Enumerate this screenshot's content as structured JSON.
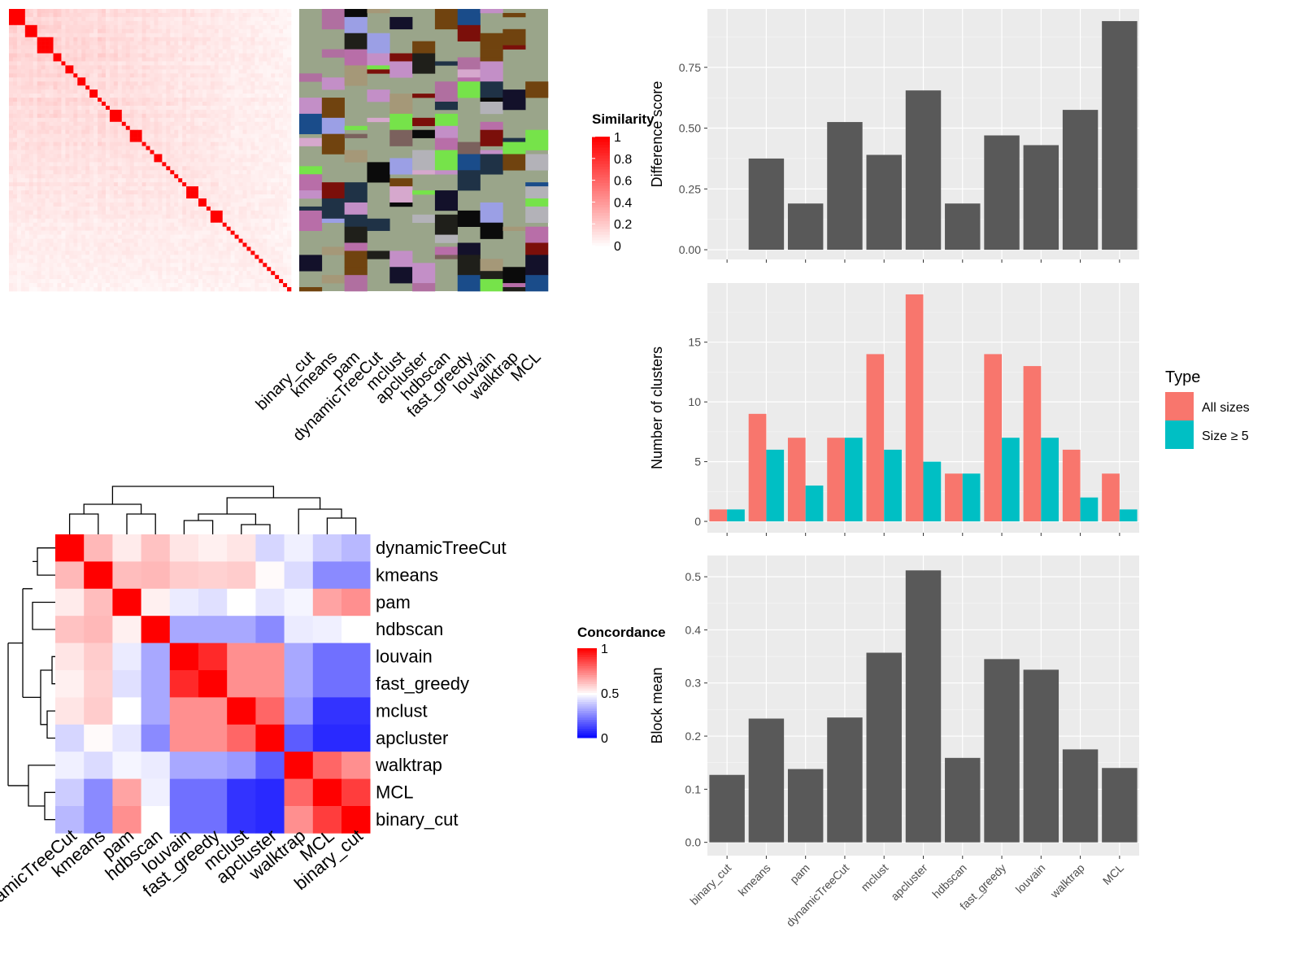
{
  "chart_data": [
    {
      "type": "heatmap",
      "panel": "similarity-matrix",
      "n_terms": 70,
      "block_sizes": [
        4,
        3,
        4,
        2,
        1,
        2,
        1,
        2,
        1,
        2,
        1,
        1,
        1,
        3,
        1,
        1,
        3,
        1,
        1,
        1,
        2,
        1,
        1,
        1,
        1,
        1,
        1,
        3,
        2,
        1,
        3,
        1,
        1,
        1,
        1,
        1,
        1,
        1,
        1,
        1,
        1,
        1,
        1
      ],
      "legend": {
        "title": "Similarity",
        "ticks": [
          "1",
          "0.8",
          "0.6",
          "0.4",
          "0.2",
          "0"
        ],
        "colors": [
          "#ffffff",
          "#ff0000"
        ]
      },
      "columns": [
        "binary_cut",
        "kmeans",
        "pam",
        "dynamicTreeCut",
        "mclust",
        "apcluster",
        "hdbscan",
        "fast_greedy",
        "louvain",
        "walktrap",
        "MCL"
      ],
      "cluster_colors": [
        "#9aa58a",
        "#c38fc7",
        "#76e34a",
        "#1f3246",
        "#9b9fe5",
        "#7b615d",
        "#13112a",
        "#b3b2b8",
        "#0b0b0b",
        "#b86ea8",
        "#d6a8cd",
        "#70430f",
        "#7b0f0a",
        "#1f1f1a",
        "#1a4c8a",
        "#a59878",
        "#b06fa0"
      ]
    },
    {
      "type": "heatmap",
      "panel": "concordance",
      "methods": [
        "dynamicTreeCut",
        "kmeans",
        "pam",
        "hdbscan",
        "louvain",
        "fast_greedy",
        "mclust",
        "apcluster",
        "walktrap",
        "MCL",
        "binary_cut"
      ],
      "values": [
        [
          1.0,
          0.64,
          0.54,
          0.62,
          0.55,
          0.53,
          0.55,
          0.42,
          0.47,
          0.4,
          0.36
        ],
        [
          0.64,
          1.0,
          0.63,
          0.64,
          0.6,
          0.59,
          0.6,
          0.51,
          0.43,
          0.27,
          0.27
        ],
        [
          0.54,
          0.63,
          1.0,
          0.53,
          0.46,
          0.44,
          0.5,
          0.45,
          0.48,
          0.68,
          0.72
        ],
        [
          0.62,
          0.64,
          0.53,
          1.0,
          0.33,
          0.33,
          0.33,
          0.27,
          0.46,
          0.47,
          0.5
        ],
        [
          0.55,
          0.6,
          0.46,
          0.33,
          1.0,
          0.92,
          0.72,
          0.72,
          0.33,
          0.22,
          0.22
        ],
        [
          0.53,
          0.59,
          0.44,
          0.33,
          0.92,
          1.0,
          0.72,
          0.72,
          0.33,
          0.22,
          0.22
        ],
        [
          0.55,
          0.6,
          0.5,
          0.33,
          0.72,
          0.72,
          1.0,
          0.8,
          0.3,
          0.1,
          0.1
        ],
        [
          0.42,
          0.51,
          0.45,
          0.27,
          0.72,
          0.72,
          0.8,
          1.0,
          0.18,
          0.08,
          0.08
        ],
        [
          0.47,
          0.43,
          0.48,
          0.46,
          0.33,
          0.33,
          0.3,
          0.18,
          1.0,
          0.8,
          0.72
        ],
        [
          0.4,
          0.27,
          0.68,
          0.47,
          0.22,
          0.22,
          0.1,
          0.08,
          0.8,
          1.0,
          0.88
        ],
        [
          0.36,
          0.27,
          0.72,
          0.5,
          0.22,
          0.22,
          0.1,
          0.08,
          0.72,
          0.88,
          1.0
        ]
      ],
      "legend": {
        "title": "Concordance",
        "ticks": [
          "1",
          "0.5",
          "0"
        ],
        "colors": [
          "#0000ff",
          "#ffffff",
          "#ff0000"
        ]
      }
    },
    {
      "type": "bar",
      "panel": "difference-score",
      "categories": [
        "binary_cut",
        "kmeans",
        "pam",
        "dynamicTreeCut",
        "mclust",
        "apcluster",
        "hdbscan",
        "fast_greedy",
        "louvain",
        "walktrap",
        "MCL"
      ],
      "values": [
        0.0,
        0.375,
        0.19,
        0.525,
        0.39,
        0.655,
        0.19,
        0.47,
        0.43,
        0.575,
        0.94
      ],
      "ylabel": "Difference score",
      "ylim": [
        -0.04,
        0.99
      ],
      "yticks": [
        "0.00",
        "0.25",
        "0.50",
        "0.75"
      ],
      "bar_color": "#595959"
    },
    {
      "type": "bar",
      "panel": "number-of-clusters",
      "categories": [
        "binary_cut",
        "kmeans",
        "pam",
        "dynamicTreeCut",
        "mclust",
        "apcluster",
        "hdbscan",
        "fast_greedy",
        "louvain",
        "walktrap",
        "MCL"
      ],
      "series": [
        {
          "name": "All sizes",
          "values": [
            1,
            9,
            7,
            7,
            14,
            19,
            4,
            14,
            13,
            6,
            4
          ],
          "color": "#f8766d"
        },
        {
          "name": "Size ≥ 5",
          "values": [
            1,
            6,
            3,
            7,
            6,
            5,
            4,
            7,
            7,
            2,
            1
          ],
          "color": "#00bfc4"
        }
      ],
      "ylabel": "Number of clusters",
      "ylim": [
        -0.95,
        19.95
      ],
      "yticks": [
        "0",
        "5",
        "10",
        "15"
      ],
      "legend_title": "Type"
    },
    {
      "type": "bar",
      "panel": "block-mean",
      "categories": [
        "binary_cut",
        "kmeans",
        "pam",
        "dynamicTreeCut",
        "mclust",
        "apcluster",
        "hdbscan",
        "fast_greedy",
        "louvain",
        "walktrap",
        "MCL"
      ],
      "values": [
        0.127,
        0.233,
        0.138,
        0.235,
        0.357,
        0.512,
        0.159,
        0.345,
        0.325,
        0.175,
        0.14
      ],
      "ylabel": "Block mean",
      "ylim": [
        -0.025,
        0.54
      ],
      "yticks": [
        "0.0",
        "0.1",
        "0.2",
        "0.3",
        "0.4",
        "0.5"
      ],
      "bar_color": "#595959"
    }
  ]
}
